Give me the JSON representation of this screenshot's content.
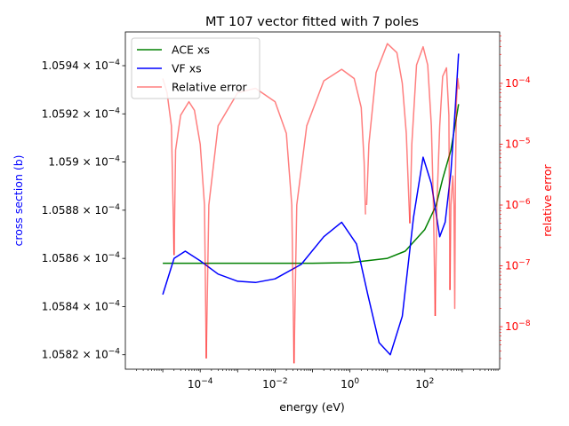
{
  "chart_data": {
    "type": "line",
    "title": "MT 107 vector fitted with 7 poles",
    "xlabel": "energy (eV)",
    "ylabel_left": "cross section (b)",
    "ylabel_right": "relative error",
    "x_scale": "log",
    "y_right_scale": "log",
    "xlim": [
      1e-06,
      10000.0
    ],
    "ylim_left": [
      0.000105814,
      0.000105954
    ],
    "ylim_right": [
      2e-09,
      0.0007
    ],
    "x_ticks": [
      {
        "value": 0.0001,
        "label": "10^-4",
        "base": "10",
        "exp": "−4"
      },
      {
        "value": 0.01,
        "label": "10^-2",
        "base": "10",
        "exp": "−2"
      },
      {
        "value": 1,
        "label": "10^0",
        "base": "10",
        "exp": "0"
      },
      {
        "value": 100,
        "label": "10^2",
        "base": "10",
        "exp": "2"
      }
    ],
    "y_left_ticks": [
      {
        "value": 0.00010582,
        "mantissa": "1.0582",
        "exp": "−4"
      },
      {
        "value": 0.00010584,
        "mantissa": "1.0584",
        "exp": "−4"
      },
      {
        "value": 0.00010586,
        "mantissa": "1.0586",
        "exp": "−4"
      },
      {
        "value": 0.00010588,
        "mantissa": "1.0588",
        "exp": "−4"
      },
      {
        "value": 0.0001059,
        "mantissa": "1.059",
        "exp": "−4"
      },
      {
        "value": 0.00010592,
        "mantissa": "1.0592",
        "exp": "−4"
      },
      {
        "value": 0.00010594,
        "mantissa": "1.0594",
        "exp": "−4"
      }
    ],
    "y_right_ticks": [
      {
        "value": 1e-08,
        "base": "10",
        "exp": "−8"
      },
      {
        "value": 1e-07,
        "base": "10",
        "exp": "−7"
      },
      {
        "value": 1e-06,
        "base": "10",
        "exp": "−6"
      },
      {
        "value": 1e-05,
        "base": "10",
        "exp": "−5"
      },
      {
        "value": 0.0001,
        "base": "10",
        "exp": "−4"
      }
    ],
    "legend_position": "upper-left",
    "series": [
      {
        "name": "ACE xs",
        "color": "#008000",
        "axis": "left",
        "x": [
          1e-05,
          0.0001,
          0.001,
          0.01,
          0.1,
          1,
          10,
          30,
          100,
          200,
          300,
          500,
          800
        ],
        "y": [
          0.000105858,
          0.000105858,
          0.000105858,
          0.000105858,
          0.000105858,
          0.0001058582,
          0.00010586,
          0.000105863,
          0.000105872,
          0.000105882,
          0.000105893,
          0.000105905,
          0.000105924
        ]
      },
      {
        "name": "VF xs",
        "color": "#0000ff",
        "axis": "left",
        "x": [
          1e-05,
          2e-05,
          4e-05,
          0.0001,
          0.0003,
          0.001,
          0.003,
          0.01,
          0.05,
          0.2,
          0.6,
          1.5,
          3,
          6,
          12,
          25,
          50,
          90,
          150,
          250,
          350,
          500,
          650,
          800
        ],
        "y": [
          0.000105845,
          0.00010586,
          0.000105863,
          0.000105859,
          0.0001058535,
          0.0001058505,
          0.00010585,
          0.0001058515,
          0.0001058575,
          0.000105869,
          0.000105875,
          0.000105866,
          0.000105845,
          0.000105825,
          0.00010582,
          0.000105836,
          0.000105877,
          0.000105902,
          0.000105891,
          0.000105869,
          0.000105875,
          0.000105896,
          0.000105922,
          0.000105945
        ]
      },
      {
        "name": "Relative error",
        "color": "#ff0000",
        "opacity": 0.5,
        "axis": "right",
        "segments": [
          {
            "x": [
              1e-05,
              1.3e-05,
              1.7e-05,
              2e-05
            ],
            "y": [
              0.00012,
              7e-05,
              2e-05,
              1.5e-07
            ]
          },
          {
            "x": [
              2e-05,
              2.2e-05,
              3e-05,
              5e-05,
              7e-05,
              0.0001,
              0.00013,
              0.000145
            ],
            "y": [
              1.5e-07,
              8e-06,
              3e-05,
              5e-05,
              3.6e-05,
              1e-05,
              1e-06,
              3e-09
            ]
          },
          {
            "x": [
              0.000145,
              0.00017,
              0.0003,
              0.001,
              0.003,
              0.01,
              0.02,
              0.028,
              0.032
            ],
            "y": [
              3e-09,
              1e-06,
              2e-05,
              7e-05,
              8.3e-05,
              5e-05,
              1.5e-05,
              1e-06,
              2.5e-09
            ]
          },
          {
            "x": [
              0.032,
              0.038,
              0.07,
              0.2,
              0.6,
              1.3,
              2.0,
              2.4,
              2.6
            ],
            "y": [
              2.5e-09,
              1e-06,
              2e-05,
              0.00011,
              0.00017,
              0.00012,
              4e-05,
              5e-06,
              7e-07
            ]
          },
          {
            "x": [
              2.8,
              3.2,
              5,
              10,
              18,
              25,
              32,
              38,
              40
            ],
            "y": [
              1e-06,
              1e-05,
              0.00015,
              0.00045,
              0.00032,
              0.0001,
              1.5e-05,
              1e-06,
              5e-07
            ]
          },
          {
            "x": [
              40,
              45,
              60,
              90,
              120,
              150,
              170,
              190
            ],
            "y": [
              5e-07,
              1e-05,
              0.0002,
              0.0004,
              0.0002,
              2e-05,
              1e-06,
              1.5e-08
            ]
          },
          {
            "x": [
              190,
              210,
              250,
              300,
              380,
              440,
              470
            ],
            "y": [
              1.5e-08,
              1e-06,
              2e-05,
              0.00013,
              0.00018,
              3e-05,
              4e-08
            ]
          },
          {
            "x": [
              470,
              500,
              560,
              600,
              630,
              660,
              700,
              760,
              820
            ],
            "y": [
              4e-08,
              1e-06,
              3e-06,
              1e-06,
              2e-08,
              3e-06,
              5e-05,
              0.00012,
              8e-05
            ]
          }
        ]
      }
    ]
  }
}
